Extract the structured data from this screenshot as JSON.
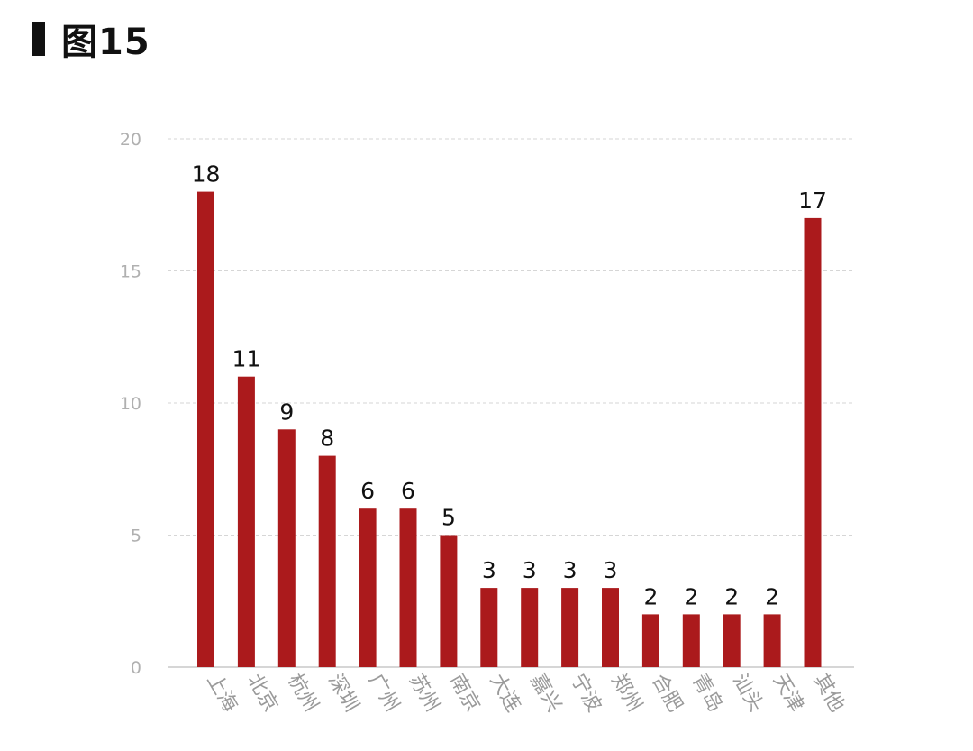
{
  "figure_label": "图15",
  "colors": {
    "bar": "#ab1a1c",
    "grid": "#d6d6d6",
    "axis": "#bdbdbd",
    "tick": "#b0b0b0",
    "value": "#111111",
    "category": "#9a9a9a"
  },
  "chart_data": {
    "type": "bar",
    "categories": [
      "上海",
      "北京",
      "杭州",
      "深圳",
      "广州",
      "苏州",
      "南京",
      "大连",
      "嘉兴",
      "宁波",
      "郑州",
      "合肥",
      "青岛",
      "汕头",
      "天津",
      "其他"
    ],
    "values": [
      18,
      11,
      9,
      8,
      6,
      6,
      5,
      3,
      3,
      3,
      3,
      2,
      2,
      2,
      2,
      17
    ],
    "ylim": [
      0,
      20
    ],
    "yticks": [
      "0",
      "5",
      "10",
      "15",
      "20"
    ],
    "grid": true,
    "xlabel": "",
    "ylabel": ""
  }
}
